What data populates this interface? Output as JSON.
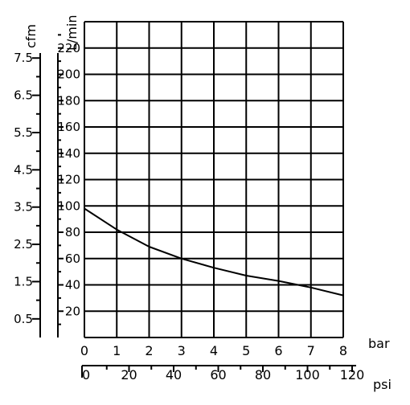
{
  "chart_data": {
    "type": "line",
    "grid": true,
    "x_primary": {
      "unit": "bar",
      "range": [
        0,
        8
      ],
      "ticks": [
        "0",
        "1",
        "2",
        "3",
        "4",
        "5",
        "6",
        "7",
        "8"
      ]
    },
    "x_secondary": {
      "unit": "psi",
      "range": [
        0,
        120
      ],
      "ticks": [
        "0",
        "20",
        "40",
        "60",
        "80",
        "100",
        "120"
      ]
    },
    "y_primary": {
      "unit": "L/min",
      "range": [
        0,
        240
      ],
      "ticks": [
        "20",
        "40",
        "60",
        "80",
        "100",
        "120",
        "140",
        "160",
        "180",
        "200",
        "220"
      ]
    },
    "y_secondary": {
      "unit": "cfm",
      "ticks": [
        "0.5",
        "1.5",
        "2.5",
        "3.5",
        "4.5",
        "5.5",
        "6.5",
        "7.5"
      ]
    },
    "series": [
      {
        "x": [
          0,
          1,
          2,
          3,
          4,
          5,
          6,
          7,
          8
        ],
        "y": [
          98,
          82,
          69,
          60,
          53,
          47,
          43,
          38,
          32
        ]
      }
    ]
  }
}
